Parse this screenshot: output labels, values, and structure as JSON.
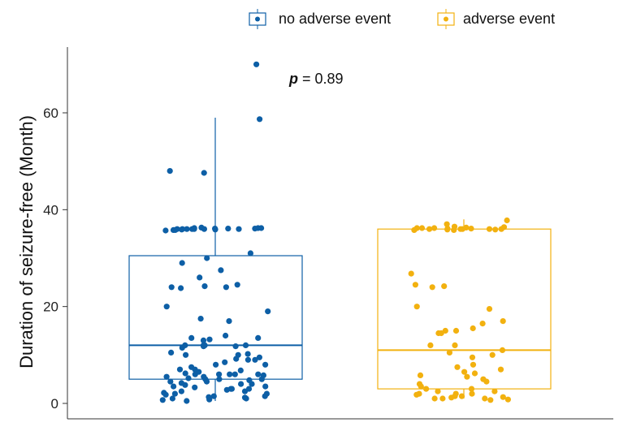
{
  "chart_data": {
    "type": "box",
    "ylabel": "Duration of seizure-free (Month)",
    "xlabel": "",
    "yticks": [
      0,
      20,
      40,
      60
    ],
    "ylim": [
      -2,
      73
    ],
    "annotation": {
      "prefix": "p",
      "text": " = 0.89"
    },
    "legend": {
      "placement": "top"
    },
    "series": [
      {
        "name": "no adverse event",
        "color": "#0d5fa6",
        "box": {
          "whisker_low": 0.5,
          "q1": 5,
          "median": 12,
          "q3": 30.5,
          "whisker_high": 59
        },
        "points": [
          70,
          58.7,
          48,
          47.6,
          36.2,
          36,
          36.3,
          35.9,
          36.1,
          36,
          35.8,
          36.2,
          36,
          35.9,
          36.1,
          36,
          35.8,
          36,
          36.2,
          36,
          35.7,
          36.1,
          36,
          31,
          30,
          29,
          27.5,
          26,
          24.5,
          24,
          24,
          23.8,
          24.2,
          20,
          19,
          17.5,
          17,
          14,
          13.5,
          13.5,
          13,
          13.2,
          12,
          12,
          12,
          11.8,
          12,
          11.5,
          11.8,
          10.5,
          10,
          10,
          10.2,
          9.5,
          9,
          9,
          9.2,
          8.5,
          8,
          8,
          7.5,
          7,
          7,
          6.5,
          6,
          6,
          6.2,
          6,
          5.8,
          6,
          6,
          5.5,
          5.5,
          5,
          5,
          4.8,
          5,
          4.5,
          4.5,
          4,
          4,
          3.8,
          3.5,
          3.5,
          3,
          3,
          2.8,
          3,
          2.5,
          2.5,
          2,
          2,
          1.8,
          1.5,
          1.5,
          1.2,
          1,
          1,
          0.8,
          0.7,
          0.5,
          1.3,
          2.2,
          3.3,
          4.2,
          5.2,
          6.8
        ]
      },
      {
        "name": "adverse event",
        "color": "#f2b10f",
        "box": {
          "whisker_low": 1,
          "q1": 3,
          "median": 11,
          "q3": 36,
          "whisker_high": 38
        },
        "points": [
          37.8,
          37,
          36.5,
          36.2,
          36,
          36.3,
          35.9,
          36.1,
          36,
          35.8,
          36.2,
          36,
          35.9,
          36.1,
          36,
          35.8,
          36,
          36.2,
          36.4,
          26.8,
          24.5,
          24.2,
          24,
          20,
          19.5,
          17,
          16.5,
          15.5,
          15,
          15,
          14.5,
          14.5,
          12,
          12,
          11,
          10.5,
          10,
          9.5,
          8,
          7.5,
          7,
          6.5,
          6.2,
          5.8,
          5.5,
          5,
          4.5,
          4,
          3.5,
          3,
          3,
          2.5,
          2.5,
          2,
          2,
          2,
          1.8,
          1.5,
          1.5,
          1.3,
          1.2,
          1,
          1,
          1,
          0.8,
          0.7
        ]
      }
    ]
  }
}
